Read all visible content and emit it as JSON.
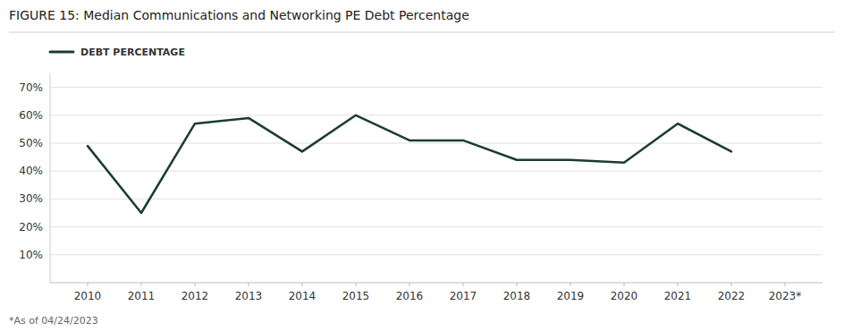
{
  "chart_data": {
    "type": "line",
    "title": "FIGURE 15:  Median Communications and Networking PE Debt Percentage",
    "footnote": "*As of 04/24/2023",
    "x": [
      2010,
      2011,
      2012,
      2013,
      2014,
      2015,
      2016,
      2017,
      2018,
      2019,
      2020,
      2021,
      2022
    ],
    "series": [
      {
        "name": "DEBT PERCENTAGE",
        "color": "#1a3c34",
        "values": [
          0.49,
          0.25,
          0.57,
          0.59,
          0.47,
          0.6,
          0.51,
          0.51,
          0.44,
          0.44,
          0.43,
          0.57,
          0.47
        ]
      }
    ],
    "xlim": [
      2009.3,
      2023.7
    ],
    "xticks": [
      2010,
      2011,
      2012,
      2013,
      2014,
      2015,
      2016,
      2017,
      2018,
      2019,
      2020,
      2021,
      2022,
      {
        "value": 2023,
        "label": "2023*"
      }
    ],
    "ylim": [
      0,
      0.75
    ],
    "yticks": [
      {
        "value": 0.1,
        "label": "10%"
      },
      {
        "value": 0.2,
        "label": "20%"
      },
      {
        "value": 0.3,
        "label": "30%"
      },
      {
        "value": 0.4,
        "label": "40%"
      },
      {
        "value": 0.5,
        "label": "50%"
      },
      {
        "value": 0.6,
        "label": "60%"
      },
      {
        "value": 0.7,
        "label": "70%"
      }
    ],
    "grid": true,
    "legend": "upper left"
  }
}
